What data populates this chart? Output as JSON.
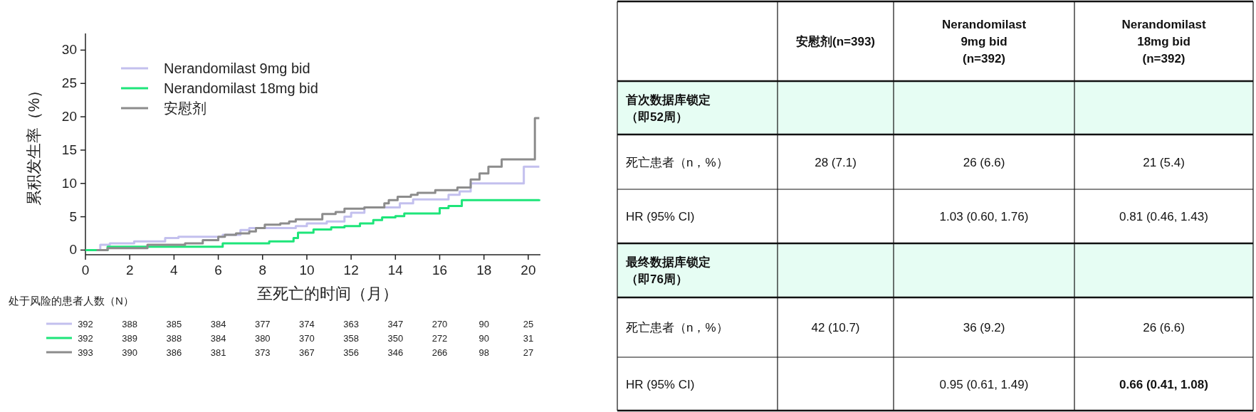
{
  "chart_data": [
    {
      "type": "step",
      "ylabel": "累积发生率（%）",
      "xlabel": "至死亡的时间（月）",
      "xlim": [
        0,
        20.55
      ],
      "ylim": [
        -0.7,
        32.5
      ],
      "xticks": [
        0,
        2,
        4,
        6,
        8,
        10,
        12,
        14,
        16,
        18,
        20
      ],
      "yticks": [
        0,
        5,
        10,
        15,
        20,
        25,
        30
      ],
      "grid": false,
      "legend": "top left",
      "series": [
        {
          "name": "Nerandomilast 9mg bid",
          "color": "#c3c0ee",
          "x": [
            0.5,
            0.67,
            1.1,
            2.2,
            3.6,
            4.2,
            6.2,
            7.0,
            7.4,
            9.5,
            10.0,
            10.9,
            11.7,
            12.0,
            12.6,
            14.2,
            14.8,
            16.4,
            16.9,
            17.4,
            19.8,
            20.5
          ],
          "values": [
            0,
            0.8,
            1.0,
            1.3,
            1.8,
            2.0,
            2.3,
            3.0,
            3.3,
            3.6,
            4.0,
            4.3,
            5.0,
            5.6,
            6.4,
            7.0,
            7.6,
            8.3,
            8.8,
            10.0,
            12.5,
            12.5
          ]
        },
        {
          "name": "Nerandomilast 18mg bid",
          "color": "#1ee57a",
          "x": [
            0,
            1.0,
            6.2,
            8.3,
            9.4,
            9.6,
            10.3,
            11.1,
            11.7,
            12.4,
            13.0,
            13.4,
            14.0,
            14.4,
            16.0,
            16.4,
            17.0,
            20.5
          ],
          "values": [
            0,
            0.5,
            1.0,
            1.3,
            1.8,
            2.6,
            3.1,
            3.4,
            3.6,
            4.0,
            4.5,
            4.9,
            5.1,
            5.5,
            6.3,
            6.6,
            7.5,
            7.6
          ]
        },
        {
          "name": "安慰剂",
          "color": "#8c8c8c",
          "x": [
            0.5,
            1.0,
            2.8,
            4.5,
            5.3,
            6.0,
            6.3,
            6.8,
            7.4,
            7.7,
            8.1,
            8.8,
            9.2,
            9.5,
            10.7,
            11.3,
            11.7,
            12.6,
            13.5,
            13.7,
            14.1,
            14.7,
            15.0,
            15.8,
            16.8,
            17.4,
            17.8,
            18.2,
            18.8,
            20.3,
            20.5
          ],
          "values": [
            0,
            0.3,
            0.8,
            1.0,
            1.5,
            2.0,
            2.3,
            2.5,
            2.8,
            3.3,
            3.8,
            4.0,
            4.3,
            4.6,
            5.4,
            5.7,
            6.2,
            6.4,
            7.0,
            7.5,
            8.0,
            8.3,
            8.6,
            9.0,
            9.4,
            10.6,
            11.5,
            12.5,
            13.6,
            19.8,
            19.8
          ]
        }
      ],
      "annotations": [
        "处于风险的患者人数（N）",
        "392",
        "388",
        "385",
        "384",
        "377",
        "374",
        "363",
        "347",
        "270",
        "90",
        "25",
        "392",
        "389",
        "388",
        "384",
        "380",
        "370",
        "358",
        "350",
        "272",
        "90",
        "31",
        "393",
        "390",
        "386",
        "381",
        "373",
        "367",
        "356",
        "346",
        "266",
        "98",
        "27"
      ]
    },
    {
      "type": "other",
      "categories": [
        "安慰剂(n=393)",
        "Nerandomilast\n9mg bid\n(n=392)",
        "Nerandomilast\n18mg bid\n(n=392)"
      ],
      "y_categories": [
        "首次数据库锁定（即52周）",
        "死亡患者（n，%）",
        "HR (95% CI)",
        "最终数据库锁定（即76周）",
        "死亡患者（n，%）",
        "HR (95% CI)"
      ],
      "cell_labels": [
        [
          null,
          null,
          null
        ],
        [
          "28 (7.1)",
          "26 (6.6)",
          "21 (5.4)"
        ],
        [
          null,
          "1.03 (0.60, 1.76)",
          "0.81 (0.46, 1.43)"
        ],
        [
          null,
          null,
          null
        ],
        [
          "42 (10.7)",
          "36 (9.2)",
          "26 (6.6)"
        ],
        [
          null,
          "0.95 (0.61, 1.49)",
          "0.66 (0.41, 1.08)"
        ]
      ]
    }
  ]
}
